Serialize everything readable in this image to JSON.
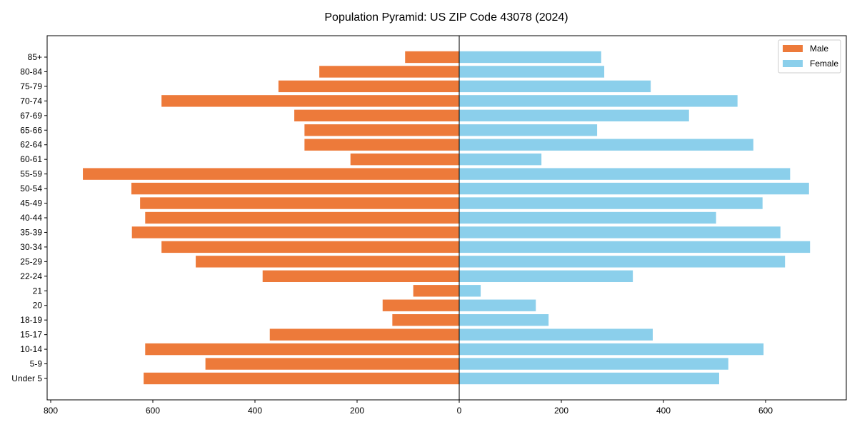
{
  "chart_data": {
    "type": "bar",
    "orientation": "horizontal-diverging",
    "title": "Population Pyramid: US ZIP Code 43078 (2024)",
    "xlabel": "",
    "ylabel": "",
    "xlim": [
      -807,
      758
    ],
    "x_ticks": [
      -800,
      -600,
      -400,
      -200,
      0,
      200,
      400,
      600
    ],
    "x_tick_labels": [
      "800",
      "600",
      "400",
      "200",
      "0",
      "200",
      "400",
      "600"
    ],
    "grid": false,
    "legend_position": "top-right",
    "categories": [
      "85+",
      "80-84",
      "75-79",
      "70-74",
      "67-69",
      "65-66",
      "62-64",
      "60-61",
      "55-59",
      "50-54",
      "45-49",
      "40-44",
      "35-39",
      "30-34",
      "25-29",
      "22-24",
      "21",
      "20",
      "18-19",
      "15-17",
      "10-14",
      "5-9",
      "Under 5"
    ],
    "series": [
      {
        "name": "Male",
        "color": "#ED7A3A",
        "values": [
          106,
          274,
          354,
          583,
          323,
          303,
          303,
          213,
          737,
          642,
          625,
          615,
          641,
          583,
          516,
          385,
          90,
          150,
          131,
          371,
          615,
          497,
          618
        ]
      },
      {
        "name": "Female",
        "color": "#8BCFEB",
        "values": [
          278,
          284,
          375,
          545,
          450,
          270,
          576,
          161,
          648,
          685,
          594,
          503,
          629,
          687,
          638,
          340,
          42,
          150,
          175,
          379,
          596,
          527,
          509
        ]
      }
    ]
  }
}
